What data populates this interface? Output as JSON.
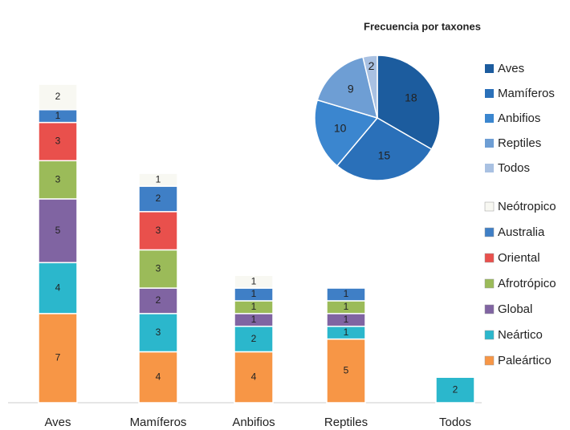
{
  "chart_data": [
    {
      "type": "stacked-bar",
      "categories": [
        "Aves",
        "Mamíferos",
        "Anbifios",
        "Reptiles",
        "Todos"
      ],
      "series": [
        {
          "name": "Paleártico",
          "color": "#f79646",
          "values": [
            7,
            4,
            4,
            5,
            null
          ]
        },
        {
          "name": "Neártico",
          "color": "#2bb7cc",
          "values": [
            4,
            3,
            2,
            1,
            2
          ]
        },
        {
          "name": "Global",
          "color": "#8064a2",
          "values": [
            5,
            2,
            1,
            1,
            null
          ]
        },
        {
          "name": "Afrotrópico",
          "color": "#9bbb59",
          "values": [
            3,
            3,
            1,
            1,
            null
          ]
        },
        {
          "name": "Oriental",
          "color": "#e9504c",
          "values": [
            3,
            3,
            null,
            null,
            null
          ]
        },
        {
          "name": "Australia",
          "color": "#3f7fc6",
          "values": [
            1,
            2,
            1,
            1,
            null
          ]
        },
        {
          "name": "Neótropico",
          "color": "#f8f8f2",
          "values": [
            2,
            1,
            1,
            null,
            null
          ]
        }
      ]
    },
    {
      "type": "pie",
      "title": "Frecuencia por taxones",
      "categories": [
        "Aves",
        "Mamíferos",
        "Anbifios",
        "Reptiles",
        "Todos"
      ],
      "values": [
        18,
        15,
        10,
        9,
        2
      ],
      "colors": [
        "#1c5c9e",
        "#2a70b9",
        "#3b86cf",
        "#6e9ed4",
        "#a9c1e2"
      ]
    }
  ]
}
